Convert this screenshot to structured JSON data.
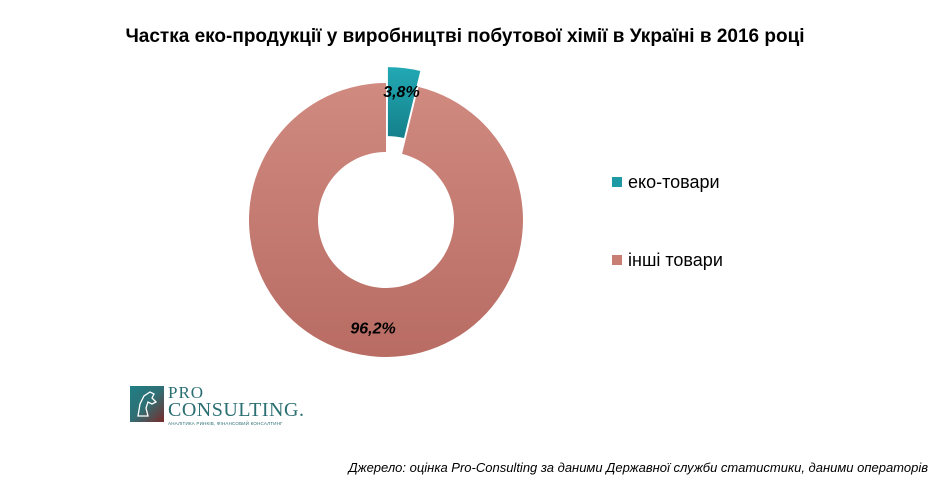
{
  "chart_data": {
    "type": "pie",
    "variant": "donut",
    "title": "Частка еко-продукції  у виробництві побутової хімії  в Україні в 2016 році",
    "categories": [
      "еко-товари",
      "інші товари"
    ],
    "values": [
      3.8,
      96.2
    ],
    "data_labels": [
      "3,8%",
      "96,2%"
    ],
    "colors": [
      "#1e9aa5",
      "#c97e74"
    ],
    "exploded": [
      "еко-товари"
    ],
    "legend_position": "right"
  },
  "source_note": "Джерело: оцінка Pro-Consulting за даними Державної служби статистики, даними операторів",
  "logo": {
    "line1": "PRO",
    "line2": "CONSULTING.",
    "tagline": "АНАЛІТИКА РИНКІВ, ФІНАНСОВИЙ КОНСАЛТИНГ"
  }
}
